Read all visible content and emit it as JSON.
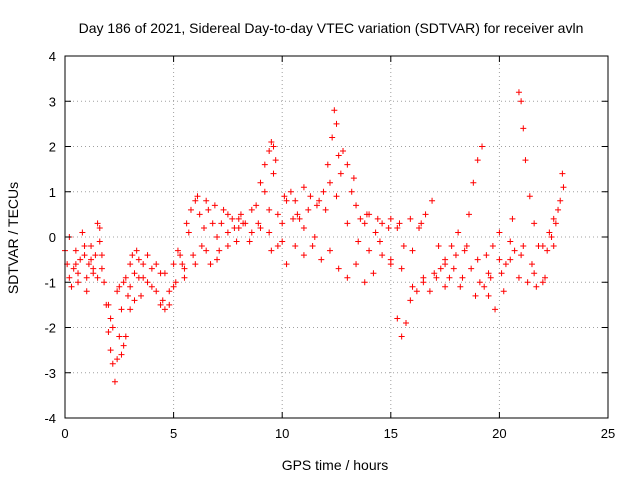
{
  "chart_data": {
    "type": "scatter",
    "title": "Day 186 of 2021, Sidereal Day-to-day VTEC variation (SDTVAR) for receiver avln",
    "xlabel": "GPS time / hours",
    "ylabel": "SDTVAR / TECUs",
    "xlim": [
      0,
      25
    ],
    "ylim": [
      -4,
      4
    ],
    "xticks": [
      "0",
      "5",
      "10",
      "15",
      "20",
      "25"
    ],
    "yticks": [
      "-4",
      "-3",
      "-2",
      "-1",
      "0",
      "1",
      "2",
      "3",
      "4"
    ],
    "grid": true,
    "marker": "plus",
    "colors": {
      "series": "#ff0000",
      "grid": "#a0a0a0",
      "axis": "#000000"
    },
    "series": [
      {
        "name": "SDTVAR",
        "points": [
          [
            0.0,
            -0.3
          ],
          [
            0.1,
            -0.6
          ],
          [
            0.2,
            -0.9
          ],
          [
            0.3,
            -1.1
          ],
          [
            0.4,
            -0.7
          ],
          [
            0.5,
            -0.3
          ],
          [
            0.6,
            -0.8
          ],
          [
            0.7,
            -0.5
          ],
          [
            0.8,
            0.1
          ],
          [
            0.9,
            -0.4
          ],
          [
            1.0,
            -0.9
          ],
          [
            1.1,
            -0.6
          ],
          [
            1.2,
            -0.2
          ],
          [
            1.3,
            -0.8
          ],
          [
            1.4,
            -0.4
          ],
          [
            1.5,
            0.3
          ],
          [
            1.6,
            -0.1
          ],
          [
            1.7,
            -0.7
          ],
          [
            1.8,
            -1.0
          ],
          [
            1.9,
            -1.5
          ],
          [
            2.0,
            -2.1
          ],
          [
            2.1,
            -2.5
          ],
          [
            2.2,
            -2.8
          ],
          [
            2.3,
            -3.2
          ],
          [
            2.4,
            -2.7
          ],
          [
            2.5,
            -2.2
          ],
          [
            2.6,
            -1.6
          ],
          [
            2.7,
            -1.0
          ],
          [
            2.8,
            -0.9
          ],
          [
            2.9,
            -1.3
          ],
          [
            3.0,
            -0.6
          ],
          [
            3.1,
            -0.4
          ],
          [
            3.2,
            -0.8
          ],
          [
            3.3,
            -0.3
          ],
          [
            3.4,
            -0.5
          ],
          [
            3.6,
            -0.9
          ],
          [
            3.8,
            -1.0
          ],
          [
            4.0,
            -0.7
          ],
          [
            4.2,
            -1.2
          ],
          [
            4.4,
            -1.5
          ],
          [
            4.6,
            -1.6
          ],
          [
            4.8,
            -1.5
          ],
          [
            5.0,
            -0.6
          ],
          [
            5.2,
            -0.3
          ],
          [
            5.4,
            -0.6
          ],
          [
            5.6,
            0.3
          ],
          [
            5.8,
            0.6
          ],
          [
            6.0,
            0.8
          ],
          [
            6.2,
            0.5
          ],
          [
            6.4,
            0.2
          ],
          [
            6.6,
            0.6
          ],
          [
            6.8,
            0.3
          ],
          [
            7.0,
            0.0
          ],
          [
            7.2,
            0.3
          ],
          [
            7.5,
            0.5
          ],
          [
            7.8,
            0.2
          ],
          [
            8.0,
            0.4
          ],
          [
            8.3,
            0.3
          ],
          [
            8.6,
            0.6
          ],
          [
            8.9,
            0.3
          ],
          [
            9.0,
            1.2
          ],
          [
            9.2,
            1.6
          ],
          [
            9.4,
            1.9
          ],
          [
            9.5,
            2.1
          ],
          [
            9.6,
            2.0
          ],
          [
            9.7,
            1.7
          ],
          [
            9.8,
            0.5
          ],
          [
            10.0,
            0.3
          ],
          [
            10.2,
            0.8
          ],
          [
            10.4,
            1.0
          ],
          [
            10.6,
            0.8
          ],
          [
            10.8,
            0.4
          ],
          [
            11.0,
            1.1
          ],
          [
            11.3,
            0.9
          ],
          [
            11.6,
            0.7
          ],
          [
            11.9,
            1.0
          ],
          [
            12.1,
            1.6
          ],
          [
            12.3,
            2.2
          ],
          [
            12.4,
            2.8
          ],
          [
            12.5,
            2.5
          ],
          [
            12.6,
            1.8
          ],
          [
            12.8,
            1.9
          ],
          [
            13.0,
            1.6
          ],
          [
            13.2,
            1.0
          ],
          [
            13.4,
            0.7
          ],
          [
            13.6,
            0.4
          ],
          [
            13.8,
            0.3
          ],
          [
            14.0,
            0.5
          ],
          [
            14.3,
            0.1
          ],
          [
            14.6,
            0.3
          ],
          [
            15.0,
            0.4
          ],
          [
            15.3,
            0.2
          ],
          [
            15.6,
            -0.2
          ],
          [
            16.0,
            -0.3
          ],
          [
            16.3,
            0.2
          ],
          [
            16.6,
            0.5
          ],
          [
            16.9,
            0.8
          ],
          [
            17.2,
            -0.2
          ],
          [
            17.5,
            -0.6
          ],
          [
            17.8,
            -0.2
          ],
          [
            18.1,
            0.1
          ],
          [
            18.4,
            -0.3
          ],
          [
            18.6,
            0.5
          ],
          [
            18.8,
            1.2
          ],
          [
            19.0,
            1.7
          ],
          [
            19.2,
            2.0
          ],
          [
            19.4,
            -0.4
          ],
          [
            19.7,
            -0.2
          ],
          [
            20.0,
            0.1
          ],
          [
            20.3,
            -0.6
          ],
          [
            20.6,
            0.4
          ],
          [
            20.9,
            3.2
          ],
          [
            21.0,
            3.0
          ],
          [
            21.1,
            2.4
          ],
          [
            21.2,
            1.7
          ],
          [
            21.4,
            0.9
          ],
          [
            21.6,
            0.3
          ],
          [
            21.8,
            -0.2
          ],
          [
            22.0,
            -1.0
          ],
          [
            22.2,
            -0.3
          ],
          [
            22.4,
            0.0
          ],
          [
            22.6,
            0.3
          ],
          [
            22.8,
            0.8
          ],
          [
            22.9,
            1.4
          ],
          [
            0.5,
            -0.6
          ],
          [
            0.9,
            -0.2
          ],
          [
            1.3,
            -0.7
          ],
          [
            1.7,
            -0.4
          ],
          [
            2.1,
            -1.8
          ],
          [
            2.4,
            -1.2
          ],
          [
            2.7,
            -2.4
          ],
          [
            3.0,
            -1.1
          ],
          [
            3.4,
            -0.9
          ],
          [
            3.8,
            -0.4
          ],
          [
            4.2,
            -0.6
          ],
          [
            4.6,
            -0.8
          ],
          [
            5.1,
            -1.0
          ],
          [
            5.5,
            -0.7
          ],
          [
            5.9,
            -0.4
          ],
          [
            6.3,
            -0.2
          ],
          [
            6.7,
            -0.6
          ],
          [
            7.1,
            -0.3
          ],
          [
            7.5,
            0.1
          ],
          [
            7.9,
            -0.1
          ],
          [
            8.2,
            0.3
          ],
          [
            8.6,
            0.1
          ],
          [
            9.0,
            0.2
          ],
          [
            9.4,
            0.1
          ],
          [
            9.8,
            -0.2
          ],
          [
            10.2,
            -0.6
          ],
          [
            10.6,
            -0.2
          ],
          [
            11.0,
            -0.4
          ],
          [
            11.4,
            -0.2
          ],
          [
            11.8,
            -0.5
          ],
          [
            12.2,
            -0.3
          ],
          [
            12.6,
            -0.7
          ],
          [
            13.0,
            -0.9
          ],
          [
            13.4,
            -0.6
          ],
          [
            13.8,
            -1.0
          ],
          [
            14.2,
            -0.8
          ],
          [
            14.6,
            -0.4
          ],
          [
            15.0,
            -0.6
          ],
          [
            15.3,
            -1.8
          ],
          [
            15.5,
            -2.2
          ],
          [
            15.7,
            -1.9
          ],
          [
            15.9,
            -1.4
          ],
          [
            16.2,
            -1.2
          ],
          [
            16.5,
            -0.9
          ],
          [
            16.8,
            -1.2
          ],
          [
            17.1,
            -0.9
          ],
          [
            17.5,
            -1.1
          ],
          [
            17.9,
            -0.7
          ],
          [
            18.3,
            -0.9
          ],
          [
            18.7,
            -0.7
          ],
          [
            19.1,
            -1.0
          ],
          [
            19.5,
            -1.3
          ],
          [
            19.8,
            -1.6
          ],
          [
            20.1,
            -0.8
          ],
          [
            20.5,
            -0.5
          ],
          [
            20.9,
            -0.9
          ],
          [
            21.3,
            -1.0
          ],
          [
            21.7,
            -1.1
          ],
          [
            22.1,
            -0.9
          ],
          [
            22.5,
            -0.2
          ],
          [
            1.0,
            -1.2
          ],
          [
            1.5,
            -0.9
          ],
          [
            2.0,
            -1.5
          ],
          [
            2.5,
            -1.1
          ],
          [
            3.0,
            -1.6
          ],
          [
            3.5,
            -1.3
          ],
          [
            4.0,
            -1.1
          ],
          [
            4.5,
            -1.4
          ],
          [
            5.0,
            -1.1
          ],
          [
            5.5,
            -0.9
          ],
          [
            6.0,
            -0.6
          ],
          [
            6.5,
            -0.3
          ],
          [
            7.0,
            -0.5
          ],
          [
            7.5,
            -0.2
          ],
          [
            8.0,
            0.2
          ],
          [
            8.5,
            -0.1
          ],
          [
            9.5,
            -0.3
          ],
          [
            10.0,
            -0.1
          ],
          [
            10.5,
            0.4
          ],
          [
            11.0,
            0.2
          ],
          [
            11.5,
            0.0
          ],
          [
            12.0,
            0.6
          ],
          [
            12.5,
            0.9
          ],
          [
            13.0,
            0.3
          ],
          [
            13.5,
            -0.1
          ],
          [
            14.0,
            -0.3
          ],
          [
            14.5,
            -0.1
          ],
          [
            15.0,
            -0.5
          ],
          [
            15.5,
            -0.7
          ],
          [
            16.0,
            -1.1
          ],
          [
            16.5,
            -1.0
          ],
          [
            17.0,
            -0.8
          ],
          [
            17.5,
            -0.5
          ],
          [
            18.0,
            -0.4
          ],
          [
            18.5,
            -0.2
          ],
          [
            19.0,
            -0.5
          ],
          [
            19.5,
            -0.8
          ],
          [
            20.0,
            -0.5
          ],
          [
            20.5,
            -0.1
          ],
          [
            21.0,
            -0.4
          ],
          [
            21.5,
            -0.6
          ],
          [
            22.0,
            -0.2
          ],
          [
            22.5,
            0.4
          ],
          [
            9.2,
            1.0
          ],
          [
            9.4,
            0.6
          ],
          [
            9.6,
            1.4
          ],
          [
            10.1,
            0.9
          ],
          [
            10.7,
            0.5
          ],
          [
            11.2,
            0.6
          ],
          [
            11.7,
            0.8
          ],
          [
            12.2,
            1.2
          ],
          [
            12.7,
            1.4
          ],
          [
            13.3,
            1.3
          ],
          [
            13.9,
            0.5
          ],
          [
            14.4,
            0.4
          ],
          [
            14.9,
            0.2
          ],
          [
            15.4,
            0.3
          ],
          [
            15.9,
            0.4
          ],
          [
            16.4,
            0.3
          ],
          [
            6.1,
            0.9
          ],
          [
            6.5,
            0.8
          ],
          [
            6.9,
            0.7
          ],
          [
            7.3,
            0.6
          ],
          [
            7.7,
            0.4
          ],
          [
            8.1,
            0.5
          ],
          [
            8.8,
            0.7
          ],
          [
            0.2,
            0.0
          ],
          [
            0.6,
            -1.0
          ],
          [
            1.2,
            -0.5
          ],
          [
            1.6,
            0.2
          ],
          [
            2.2,
            -2.0
          ],
          [
            2.6,
            -2.6
          ],
          [
            2.8,
            -2.2
          ],
          [
            3.2,
            -1.4
          ],
          [
            3.6,
            -0.6
          ],
          [
            4.4,
            -0.8
          ],
          [
            4.8,
            -1.2
          ],
          [
            5.3,
            -0.4
          ],
          [
            5.7,
            0.1
          ],
          [
            17.3,
            -0.7
          ],
          [
            17.7,
            -0.9
          ],
          [
            18.2,
            -1.1
          ],
          [
            18.9,
            -1.3
          ],
          [
            19.3,
            -1.1
          ],
          [
            19.6,
            -0.9
          ],
          [
            20.2,
            -1.2
          ],
          [
            20.7,
            -0.3
          ],
          [
            21.1,
            -0.2
          ],
          [
            21.6,
            -0.8
          ],
          [
            22.3,
            0.1
          ],
          [
            22.7,
            0.6
          ],
          [
            22.95,
            1.1
          ]
        ]
      }
    ]
  }
}
